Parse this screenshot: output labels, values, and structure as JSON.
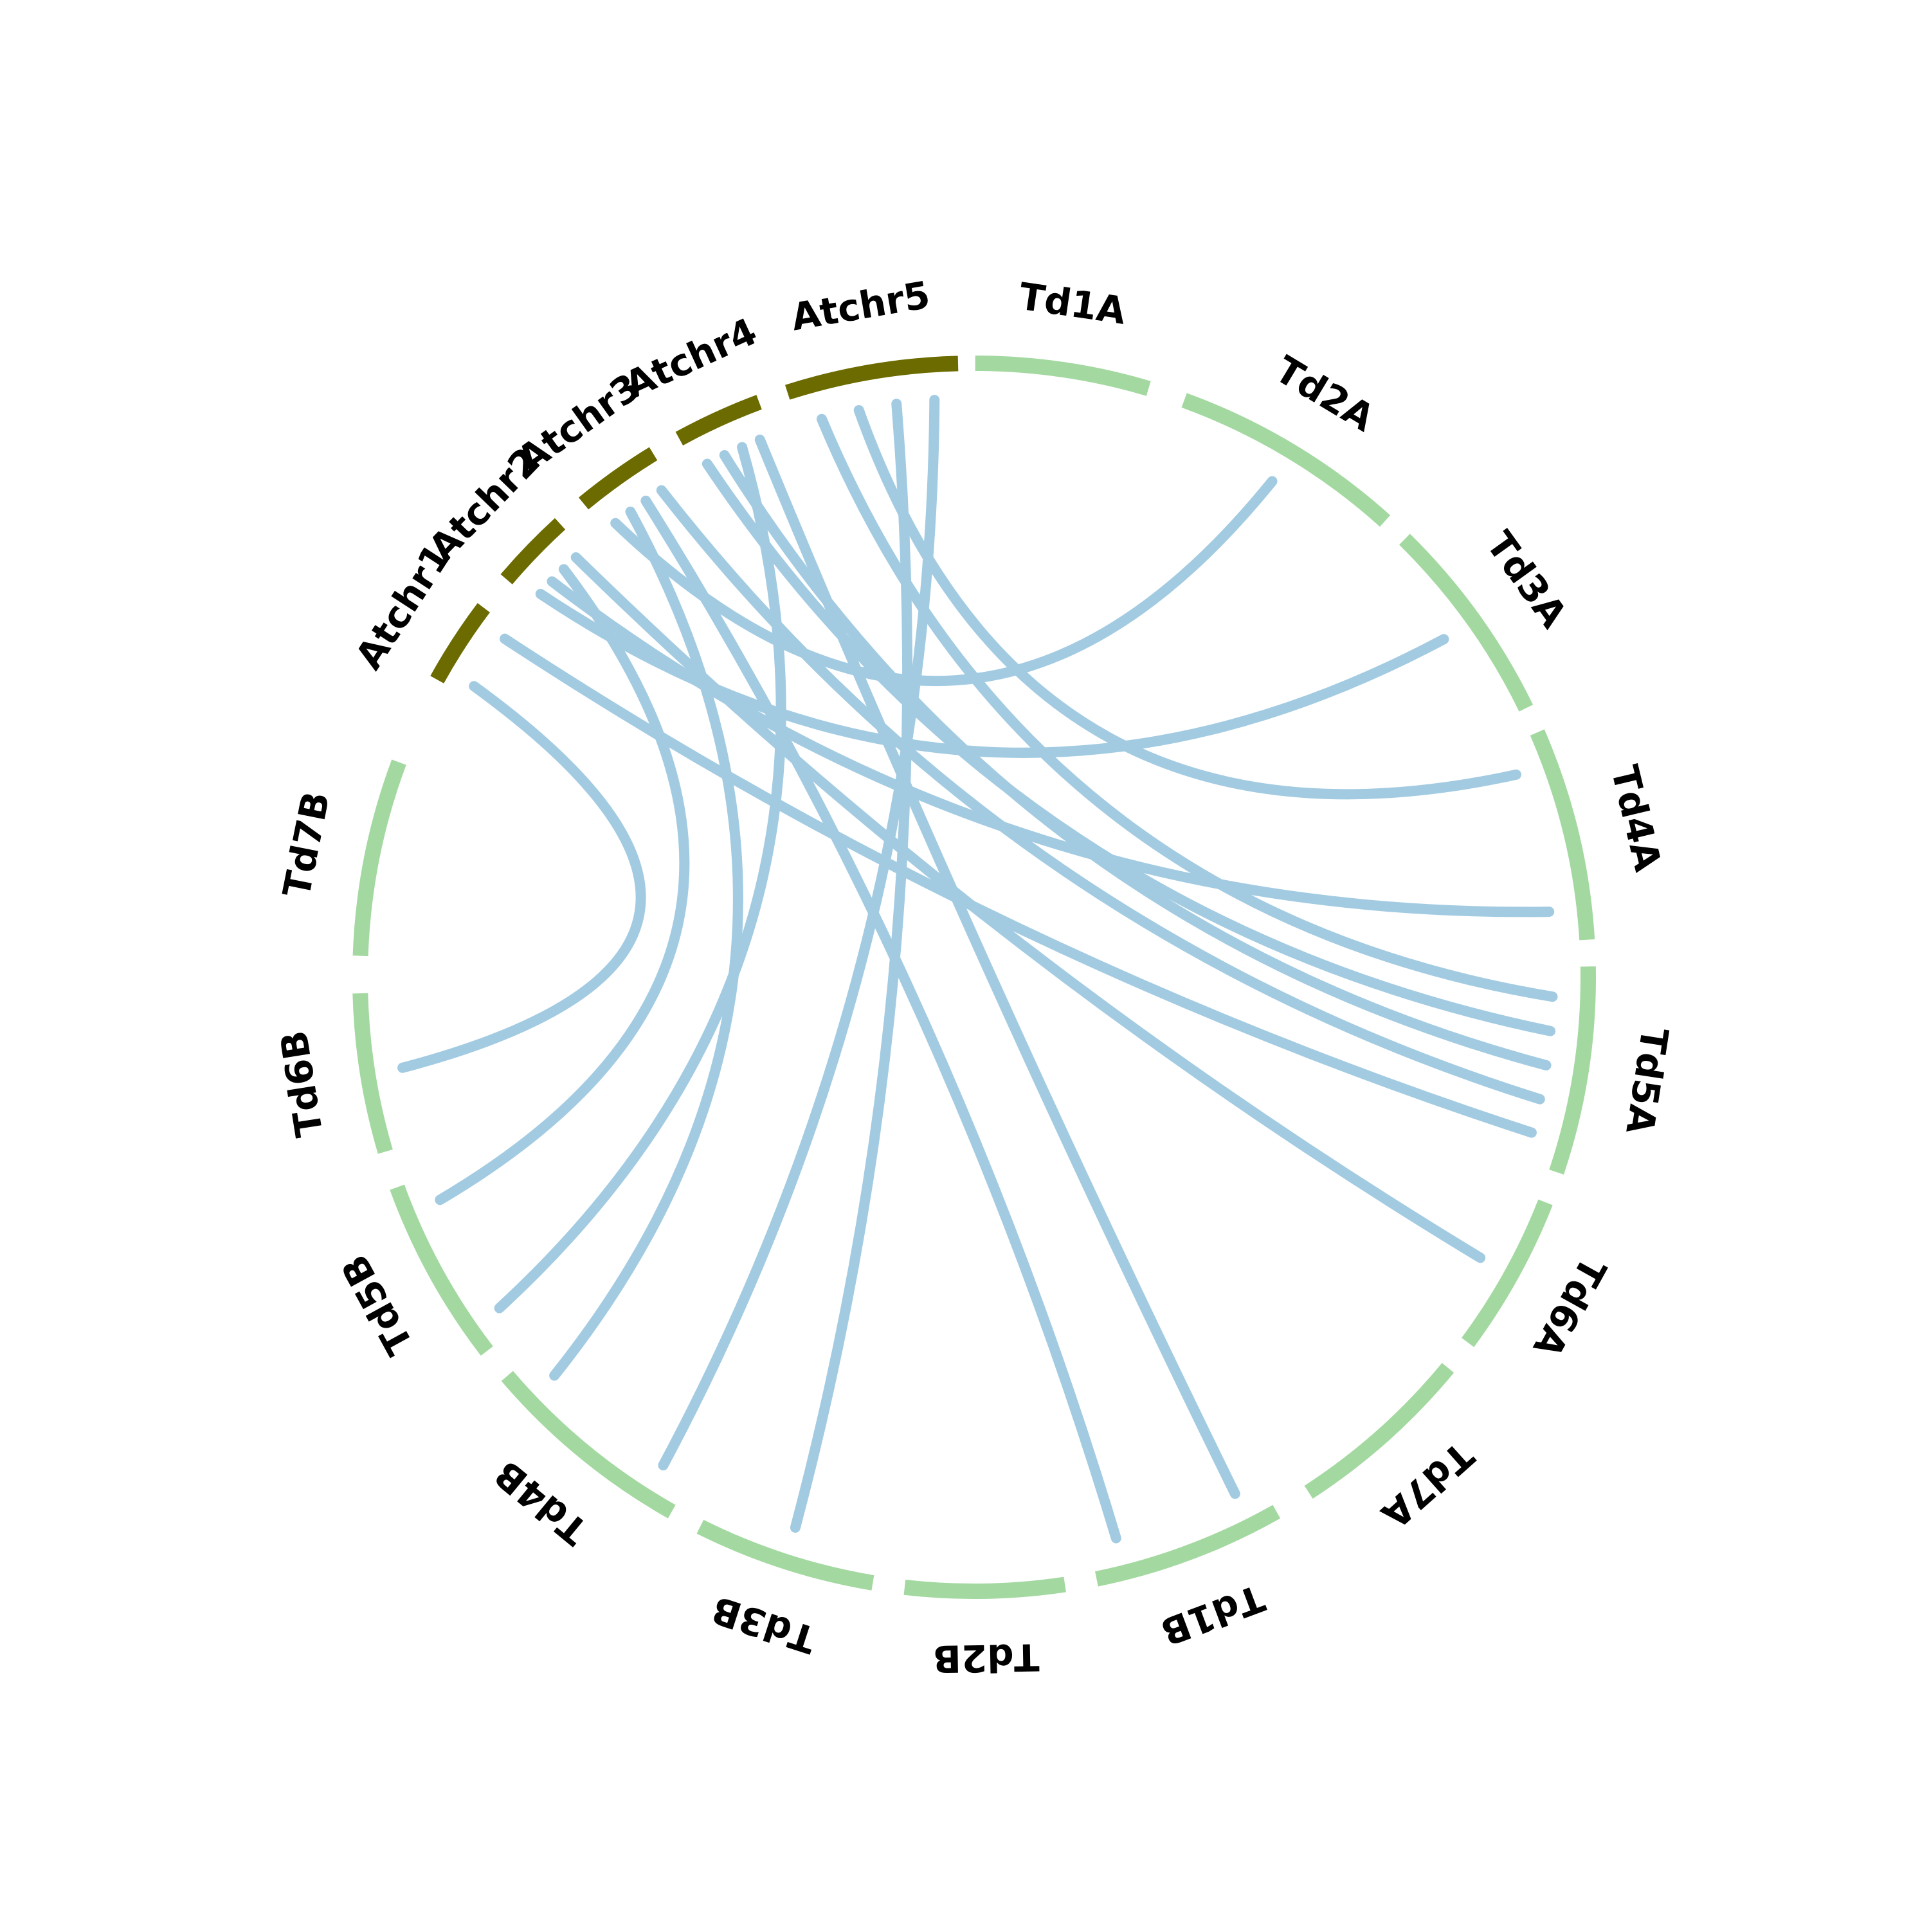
{
  "colors": {
    "arabidopsis": "#6b6b00",
    "durum": "#a3d9a0",
    "link": "#a2cbe2",
    "label": "#000000"
  },
  "segments": [
    {
      "id": "Atchr1",
      "label": "Atchr1",
      "group": "arabidopsis",
      "start": 299.0,
      "end": 307.0
    },
    {
      "id": "Atchr2",
      "label": "Atchr2",
      "group": "arabidopsis",
      "start": 310.4,
      "end": 317.6
    },
    {
      "id": "Atchr3",
      "label": "Atchr3",
      "group": "arabidopsis",
      "start": 320.5,
      "end": 328.5
    },
    {
      "id": "Atchr4",
      "label": "Atchr4",
      "group": "arabidopsis",
      "start": 331.3,
      "end": 339.5
    },
    {
      "id": "Atchr5",
      "label": "Atchr5",
      "group": "arabidopsis",
      "start": 342.3,
      "end": 358.5
    },
    {
      "id": "Td1A",
      "label": "Td1A",
      "group": "durum",
      "start": 0.1,
      "end": 16.5
    },
    {
      "id": "Td2A",
      "label": "Td2A",
      "group": "durum",
      "start": 20.0,
      "end": 42.0
    },
    {
      "id": "Td3A",
      "label": "Td3A",
      "group": "durum",
      "start": 44.5,
      "end": 64.0
    },
    {
      "id": "Td4A",
      "label": "Td4A",
      "group": "durum",
      "start": 66.5,
      "end": 86.5
    },
    {
      "id": "Td5A",
      "label": "Td5A",
      "group": "durum",
      "start": 89.0,
      "end": 108.5
    },
    {
      "id": "Td6A",
      "label": "Td6A",
      "group": "durum",
      "start": 111.5,
      "end": 126.5
    },
    {
      "id": "Td7A",
      "label": "Td7A",
      "group": "durum",
      "start": 129.5,
      "end": 147.0
    },
    {
      "id": "Td1B",
      "label": "Td1B",
      "group": "durum",
      "start": 150.5,
      "end": 168.5
    },
    {
      "id": "Td2B",
      "label": "Td2B",
      "group": "durum",
      "start": 171.5,
      "end": 186.5
    },
    {
      "id": "Td3B",
      "label": "Td3B",
      "group": "durum",
      "start": 189.5,
      "end": 206.5
    },
    {
      "id": "Td4B",
      "label": "Td4B",
      "group": "durum",
      "start": 209.5,
      "end": 229.5
    },
    {
      "id": "Td5B",
      "label": "Td5B",
      "group": "durum",
      "start": 232.5,
      "end": 250.0
    },
    {
      "id": "Td6B",
      "label": "Td6B",
      "group": "durum",
      "start": 253.5,
      "end": 268.5
    },
    {
      "id": "Td7B",
      "label": "Td7B",
      "group": "durum",
      "start": 272.0,
      "end": 290.5
    }
  ],
  "links": [
    {
      "from": "Atchr5",
      "to": "Td5A"
    },
    {
      "from": "Atchr5",
      "to": "Td4A"
    },
    {
      "from": "Atchr5",
      "to": "Td3B"
    },
    {
      "from": "Atchr5",
      "to": "Td4B"
    },
    {
      "from": "Atchr4",
      "to": "Td5A"
    },
    {
      "from": "Atchr4",
      "to": "Td5A"
    },
    {
      "from": "Atchr4",
      "to": "Td5B"
    },
    {
      "from": "Atchr4",
      "to": "Td1B"
    },
    {
      "from": "Atchr3",
      "to": "Td2A"
    },
    {
      "from": "Atchr3",
      "to": "Td4B"
    },
    {
      "from": "Atchr3",
      "to": "Td1B"
    },
    {
      "from": "Atchr3",
      "to": "Td5A"
    },
    {
      "from": "Atchr2",
      "to": "Td3A"
    },
    {
      "from": "Atchr2",
      "to": "Td4A"
    },
    {
      "from": "Atchr2",
      "to": "Td5B"
    },
    {
      "from": "Atchr2",
      "to": "Td6A"
    },
    {
      "from": "Atchr1",
      "to": "Td6B"
    },
    {
      "from": "Atchr1",
      "to": "Td5A"
    }
  ]
}
